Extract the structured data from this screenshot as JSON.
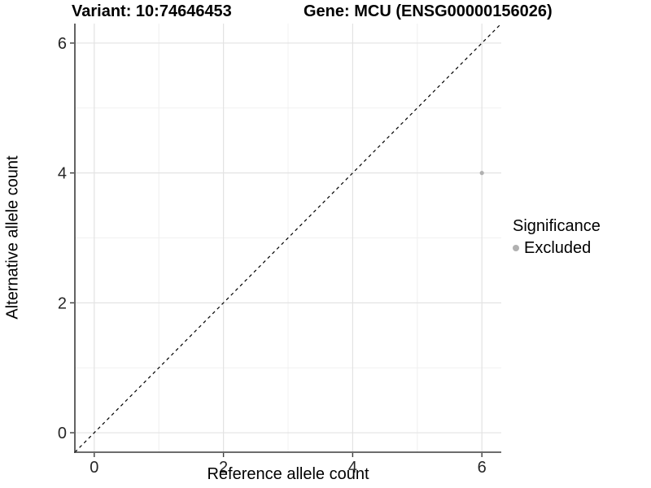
{
  "chart_data": {
    "type": "scatter",
    "title_left": "Variant: 10:74646453",
    "title_right": "Gene: MCU (ENSG00000156026)",
    "xlabel": "Reference allele count",
    "ylabel": "Alternative allele count",
    "x_ticks": [
      0,
      2,
      4,
      6
    ],
    "y_ticks": [
      0,
      2,
      4,
      6
    ],
    "x_minor": [
      1,
      3,
      5
    ],
    "y_minor": [
      1,
      3,
      5
    ],
    "xlim": [
      -0.3,
      6.3
    ],
    "ylim": [
      -0.3,
      6.3
    ],
    "grid": "major and minor, light gray, on white background",
    "identity_line": {
      "style": "dashed",
      "color": "#000000",
      "from": [
        -0.3,
        -0.3
      ],
      "to": [
        6.3,
        6.3
      ]
    },
    "series": [
      {
        "name": "Excluded",
        "color": "#b1b1b1",
        "points": [
          {
            "x": 6,
            "y": 4
          }
        ]
      }
    ],
    "legend": {
      "title": "Significance",
      "position": "right",
      "entries": [
        {
          "label": "Excluded",
          "color": "#b1b1b1"
        }
      ]
    },
    "colors": {
      "grid_major": "#e3e3e3",
      "grid_minor": "#f0f0f0",
      "axis_line": "#3c3c3c",
      "tick_text": "#262626",
      "point": "#b1b1b1"
    }
  }
}
